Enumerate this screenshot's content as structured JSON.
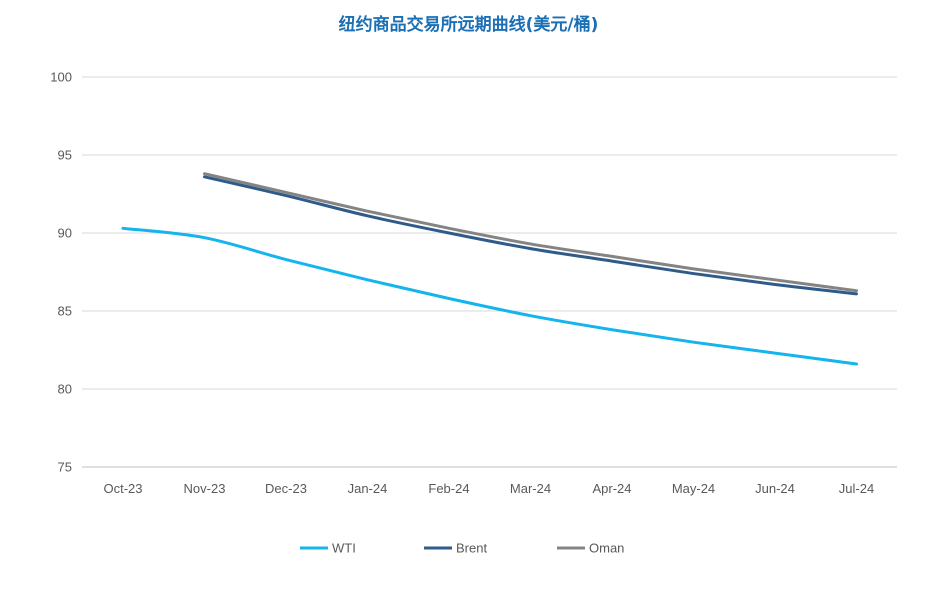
{
  "chart_data": {
    "type": "line",
    "title": "纽约商品交易所远期曲线(美元/桶)",
    "categories": [
      "Oct-23",
      "Nov-23",
      "Dec-23",
      "Jan-24",
      "Feb-24",
      "Mar-24",
      "Apr-24",
      "May-24",
      "Jun-24",
      "Jul-24"
    ],
    "ylim": [
      75,
      100
    ],
    "yticks": [
      "75",
      "80",
      "85",
      "90",
      "95",
      "100"
    ],
    "grid": true,
    "legend_position": "bottom",
    "series": [
      {
        "name": "WTI",
        "color": "#14b4ec",
        "values": [
          90.3,
          89.7,
          88.3,
          87.0,
          85.8,
          84.7,
          83.8,
          83.0,
          82.3,
          81.6
        ]
      },
      {
        "name": "Brent",
        "color": "#2e5b8a",
        "values": [
          null,
          93.6,
          92.4,
          91.1,
          90.0,
          89.0,
          88.2,
          87.4,
          86.7,
          86.1
        ]
      },
      {
        "name": "Oman",
        "color": "#848484",
        "values": [
          null,
          93.8,
          92.6,
          91.4,
          90.3,
          89.3,
          88.5,
          87.7,
          87.0,
          86.3
        ]
      }
    ]
  }
}
